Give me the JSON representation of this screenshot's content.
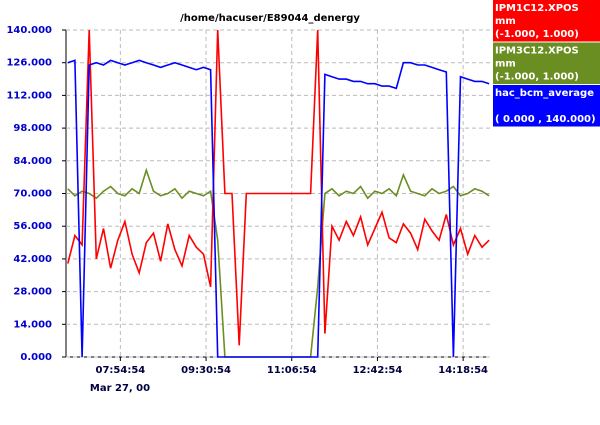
{
  "chart_data": {
    "type": "line",
    "title": "/home/hacuser/E89044_denergy",
    "date_label": "Mar 27, 00",
    "x": [
      416,
      424,
      432,
      440,
      448,
      456,
      464,
      472,
      480,
      488,
      496,
      504,
      512,
      520,
      528,
      536,
      544,
      552,
      560,
      568,
      576,
      584,
      592,
      600,
      608,
      616,
      624,
      632,
      640,
      648,
      656,
      664,
      672,
      680,
      688,
      696,
      704,
      712,
      720,
      728,
      736,
      744,
      752,
      760,
      768,
      776,
      784,
      792,
      800,
      808,
      816,
      824,
      832,
      840,
      848,
      856,
      864,
      872,
      880,
      888
    ],
    "xlim": [
      414,
      889
    ],
    "xticks": [
      {
        "value": 474.9,
        "label": "07:54:54"
      },
      {
        "value": 570.9,
        "label": "09:30:54"
      },
      {
        "value": 666.9,
        "label": "11:06:54"
      },
      {
        "value": 762.9,
        "label": "12:42:54"
      },
      {
        "value": 858.9,
        "label": "14:18:54"
      }
    ],
    "ylim": [
      0,
      140
    ],
    "yticks": [
      {
        "value": 0,
        "label": "0.000"
      },
      {
        "value": 14,
        "label": "14.000"
      },
      {
        "value": 28,
        "label": "28.000"
      },
      {
        "value": 42,
        "label": "42.000"
      },
      {
        "value": 56,
        "label": "56.000"
      },
      {
        "value": 70,
        "label": "70.000"
      },
      {
        "value": 84,
        "label": "84.000"
      },
      {
        "value": 98,
        "label": "98.000"
      },
      {
        "value": 112,
        "label": "112.000"
      },
      {
        "value": 126,
        "label": "126.000"
      },
      {
        "value": 140,
        "label": "140.000"
      }
    ],
    "grid": true,
    "series": [
      {
        "name": "IPM3C12.XPOS",
        "units": "mm",
        "range": "(-1.000,  1.000)",
        "color": "#6b8e23",
        "values": [
          72,
          69,
          71,
          70,
          68,
          71,
          73,
          70,
          69,
          72,
          70,
          80,
          71,
          69,
          70,
          72,
          68,
          71,
          70,
          69,
          71,
          50,
          0,
          0,
          0,
          0,
          0,
          0,
          0,
          0,
          0,
          0,
          0,
          0,
          0,
          30,
          70,
          72,
          69,
          71,
          70,
          73,
          68,
          71,
          70,
          72,
          69,
          78,
          71,
          70,
          69,
          72,
          70,
          71,
          73,
          69,
          70,
          72,
          71,
          69
        ]
      },
      {
        "name": "IPM1C12.XPOS",
        "units": "mm",
        "range": "(-1.000,  1.000)",
        "color": "#ff0000",
        "values": [
          40,
          52,
          48,
          140,
          42,
          55,
          38,
          50,
          58,
          44,
          36,
          49,
          53,
          41,
          57,
          46,
          39,
          52,
          47,
          44,
          30,
          140,
          70,
          70,
          5,
          70,
          70,
          70,
          70,
          70,
          70,
          70,
          70,
          70,
          70,
          140,
          10,
          56,
          50,
          58,
          52,
          60,
          48,
          55,
          62,
          51,
          49,
          57,
          53,
          46,
          59,
          54,
          50,
          61,
          48,
          55,
          44,
          52,
          47,
          50
        ]
      },
      {
        "name": "hac_bcm_average",
        "range": "( 0.000 ,  140.000)",
        "color": "#0000ff",
        "values": [
          126,
          127,
          0,
          125,
          126,
          125,
          127,
          126,
          125,
          126,
          127,
          126,
          125,
          124,
          125,
          126,
          125,
          124,
          123,
          124,
          123,
          0,
          0,
          0,
          0,
          0,
          0,
          0,
          0,
          0,
          0,
          0,
          0,
          0,
          0,
          0,
          121,
          120,
          119,
          119,
          118,
          118,
          117,
          117,
          116,
          116,
          115,
          126,
          126,
          125,
          125,
          124,
          123,
          122,
          0,
          120,
          119,
          118,
          118,
          117
        ]
      }
    ]
  }
}
